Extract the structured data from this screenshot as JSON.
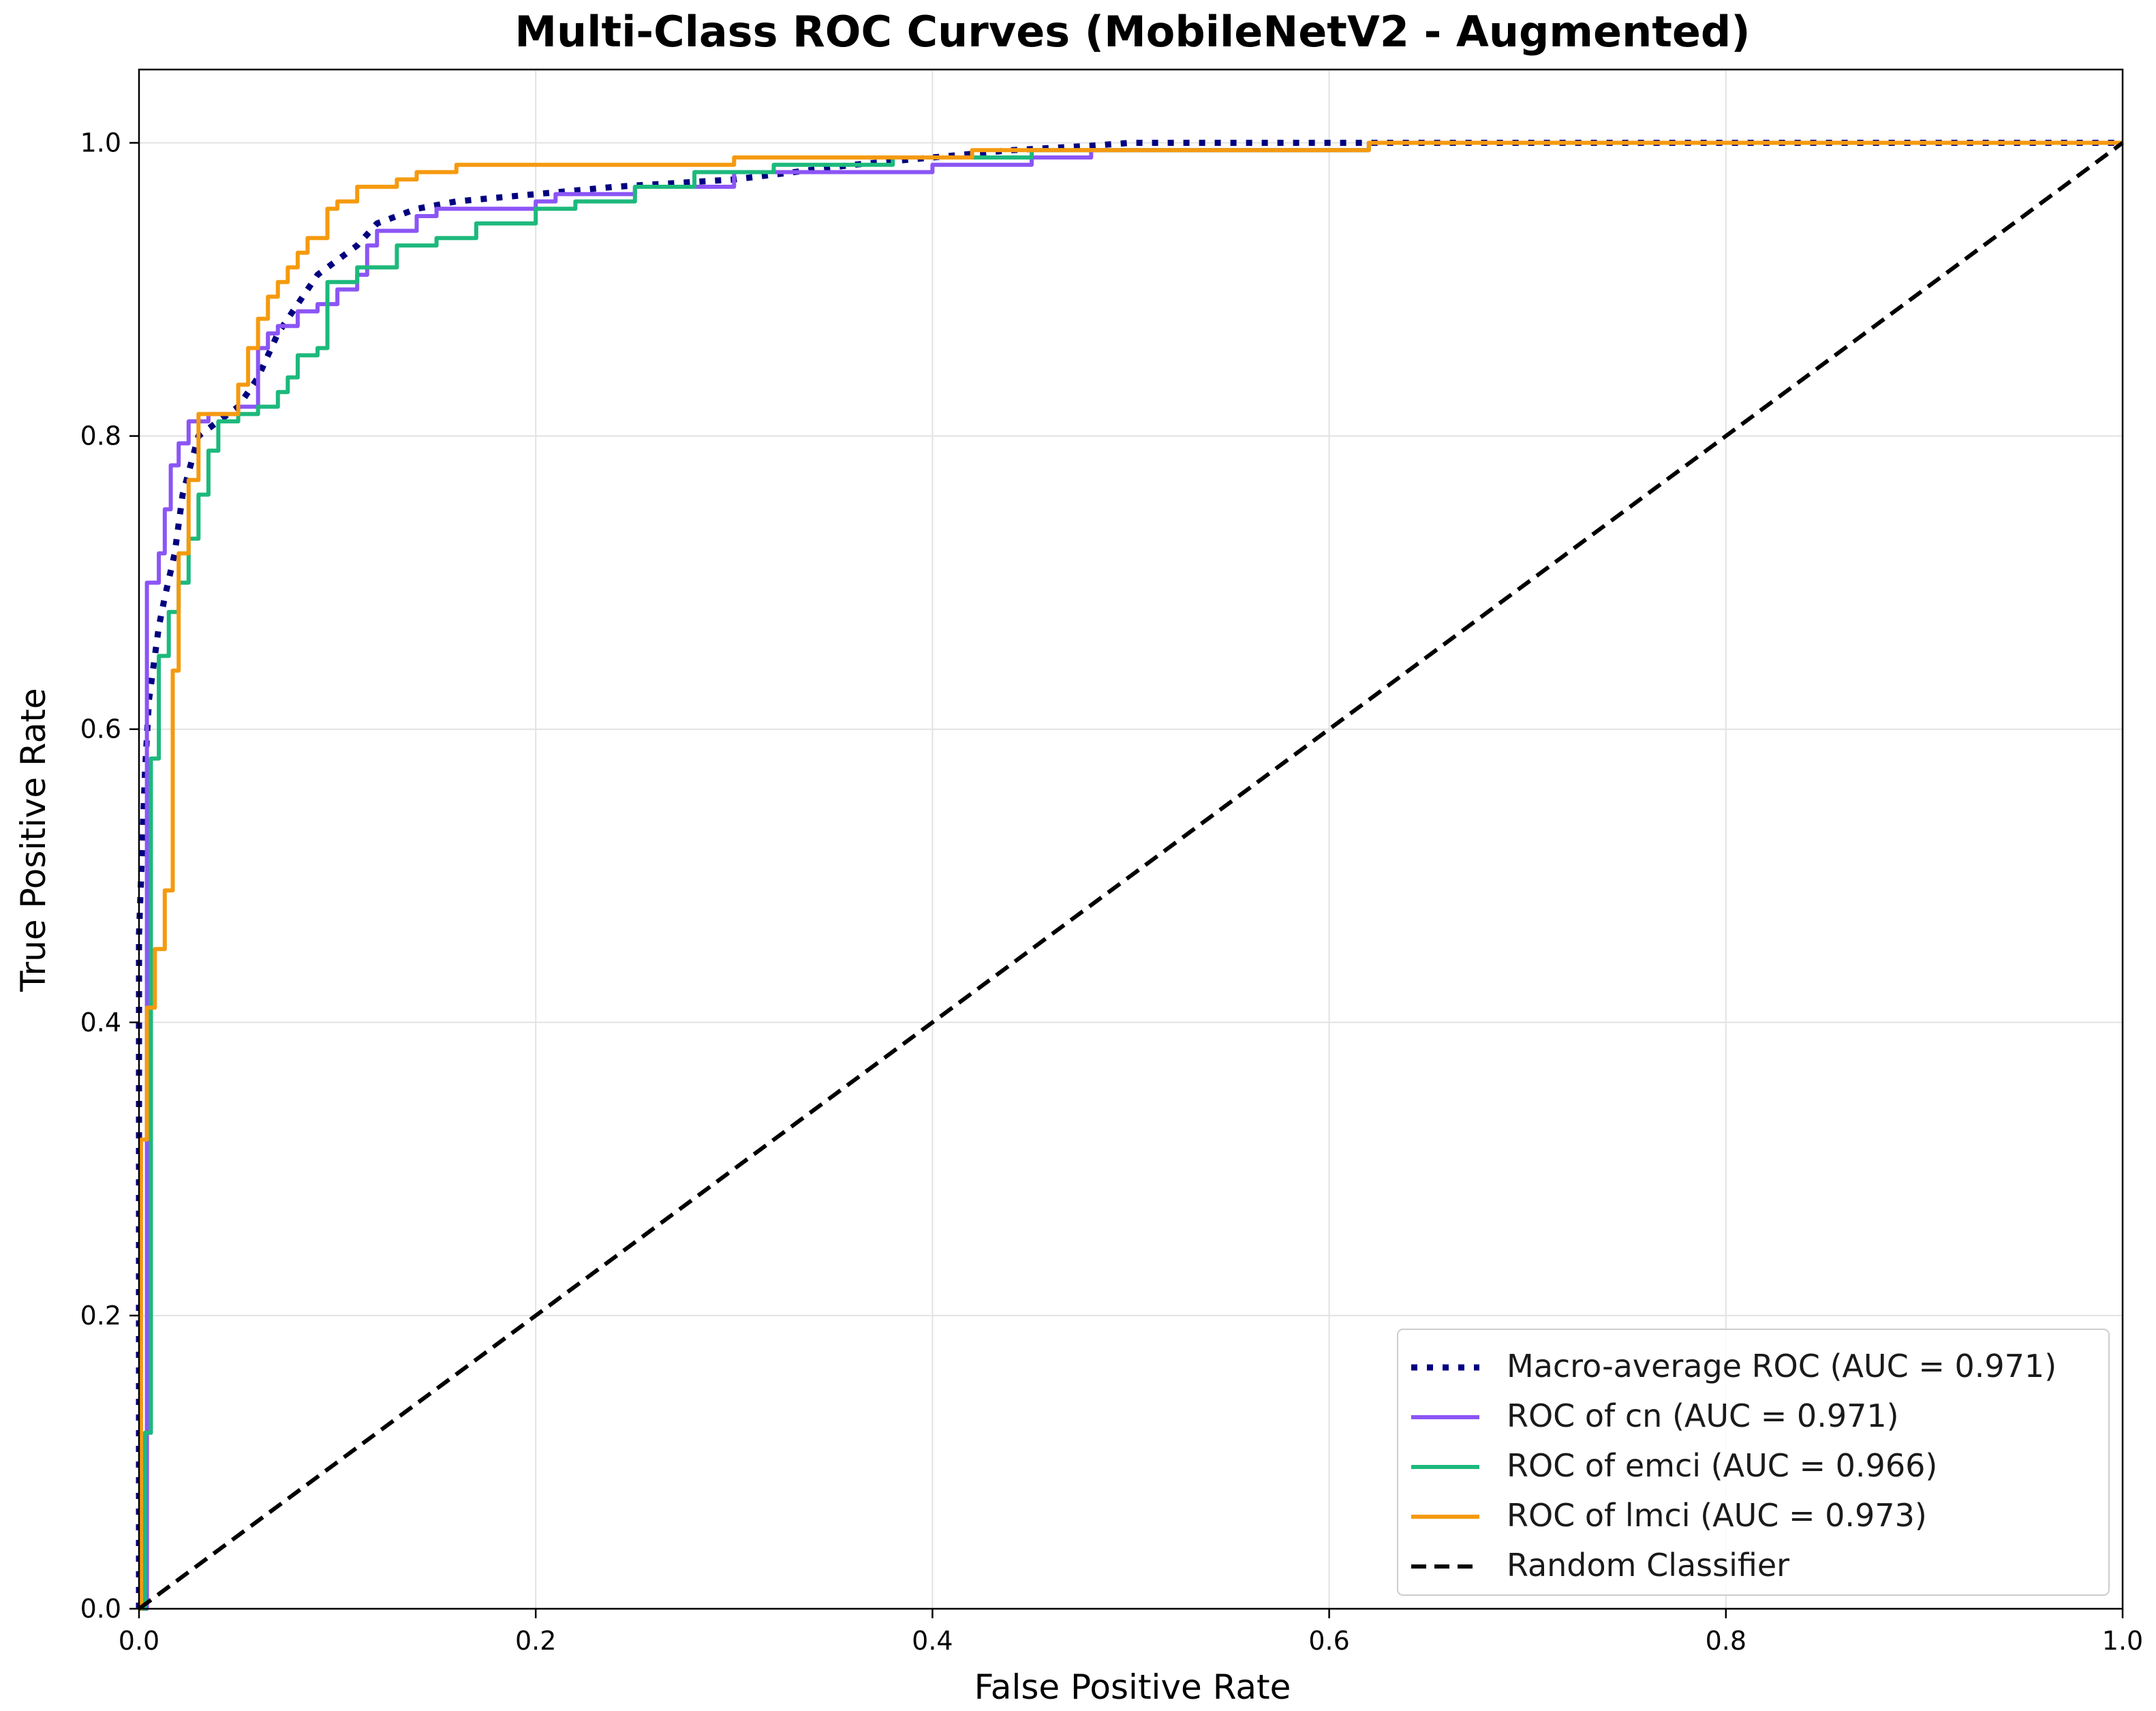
{
  "chart_data": {
    "type": "line",
    "title": "Multi-Class ROC Curves (MobileNetV2 - Augmented)",
    "xlabel": "False Positive Rate",
    "ylabel": "True Positive Rate",
    "xlim": [
      0.0,
      1.0
    ],
    "ylim": [
      0.0,
      1.05
    ],
    "xticks": [
      0.0,
      0.2,
      0.4,
      0.6,
      0.8,
      1.0
    ],
    "xtick_labels": [
      "0.0",
      "0.2",
      "0.4",
      "0.6",
      "0.8",
      "1.0"
    ],
    "yticks": [
      0.0,
      0.2,
      0.4,
      0.6,
      0.8,
      1.0
    ],
    "ytick_labels": [
      "0.0",
      "0.2",
      "0.4",
      "0.6",
      "0.8",
      "1.0"
    ],
    "grid": true,
    "legend_position": "lower-right",
    "series": [
      {
        "name": "Macro-average ROC (AUC = 0.971)",
        "color": "#000080",
        "style": "dotted",
        "x": [
          0.0,
          0.0,
          0.003,
          0.005,
          0.008,
          0.01,
          0.013,
          0.018,
          0.022,
          0.03,
          0.04,
          0.05,
          0.06,
          0.07,
          0.08,
          0.09,
          0.1,
          0.11,
          0.12,
          0.14,
          0.16,
          0.2,
          0.24,
          0.3,
          0.36,
          0.4,
          0.44,
          0.48,
          0.5,
          0.6,
          0.8,
          1.0
        ],
        "y": [
          0.0,
          0.46,
          0.57,
          0.62,
          0.65,
          0.67,
          0.69,
          0.72,
          0.76,
          0.8,
          0.81,
          0.82,
          0.84,
          0.87,
          0.89,
          0.91,
          0.92,
          0.93,
          0.945,
          0.955,
          0.96,
          0.965,
          0.97,
          0.975,
          0.985,
          0.99,
          0.995,
          0.998,
          1.0,
          1.0,
          1.0,
          1.0
        ]
      },
      {
        "name": "ROC of cn (AUC = 0.971)",
        "color": "#8b55f5",
        "style": "solid",
        "x": [
          0.0,
          0.004,
          0.004,
          0.01,
          0.01,
          0.013,
          0.013,
          0.016,
          0.016,
          0.02,
          0.02,
          0.025,
          0.025,
          0.035,
          0.035,
          0.05,
          0.05,
          0.06,
          0.06,
          0.065,
          0.065,
          0.07,
          0.07,
          0.08,
          0.08,
          0.09,
          0.09,
          0.1,
          0.1,
          0.11,
          0.11,
          0.115,
          0.115,
          0.12,
          0.12,
          0.14,
          0.14,
          0.15,
          0.15,
          0.2,
          0.2,
          0.21,
          0.21,
          0.25,
          0.25,
          0.3,
          0.3,
          0.4,
          0.4,
          0.45,
          0.45,
          0.48,
          0.48,
          0.62,
          0.62,
          1.0
        ],
        "y": [
          0.0,
          0.0,
          0.7,
          0.7,
          0.72,
          0.72,
          0.75,
          0.75,
          0.78,
          0.78,
          0.795,
          0.795,
          0.81,
          0.81,
          0.815,
          0.815,
          0.82,
          0.82,
          0.86,
          0.86,
          0.87,
          0.87,
          0.875,
          0.875,
          0.885,
          0.885,
          0.89,
          0.89,
          0.9,
          0.9,
          0.91,
          0.91,
          0.93,
          0.93,
          0.94,
          0.94,
          0.95,
          0.95,
          0.955,
          0.955,
          0.96,
          0.96,
          0.965,
          0.965,
          0.97,
          0.97,
          0.98,
          0.98,
          0.985,
          0.985,
          0.99,
          0.99,
          0.995,
          0.995,
          1.0,
          1.0
        ]
      },
      {
        "name": "ROC of emci (AUC = 0.966)",
        "color": "#1db97c",
        "style": "solid",
        "x": [
          0.0,
          0.003,
          0.003,
          0.006,
          0.006,
          0.01,
          0.01,
          0.015,
          0.015,
          0.02,
          0.02,
          0.025,
          0.025,
          0.03,
          0.03,
          0.035,
          0.035,
          0.04,
          0.04,
          0.05,
          0.05,
          0.06,
          0.06,
          0.07,
          0.07,
          0.075,
          0.075,
          0.08,
          0.08,
          0.09,
          0.09,
          0.095,
          0.095,
          0.11,
          0.11,
          0.13,
          0.13,
          0.15,
          0.15,
          0.17,
          0.17,
          0.2,
          0.2,
          0.22,
          0.22,
          0.25,
          0.25,
          0.28,
          0.28,
          0.32,
          0.32,
          0.38,
          0.38,
          0.45,
          0.45,
          0.62,
          0.62,
          1.0
        ],
        "y": [
          0.0,
          0.0,
          0.12,
          0.12,
          0.58,
          0.58,
          0.65,
          0.65,
          0.68,
          0.68,
          0.7,
          0.7,
          0.73,
          0.73,
          0.76,
          0.76,
          0.79,
          0.79,
          0.81,
          0.81,
          0.815,
          0.815,
          0.82,
          0.82,
          0.83,
          0.83,
          0.84,
          0.84,
          0.855,
          0.855,
          0.86,
          0.86,
          0.905,
          0.905,
          0.915,
          0.915,
          0.93,
          0.93,
          0.935,
          0.935,
          0.945,
          0.945,
          0.955,
          0.955,
          0.96,
          0.96,
          0.97,
          0.97,
          0.98,
          0.98,
          0.985,
          0.985,
          0.99,
          0.99,
          0.995,
          0.995,
          1.0,
          1.0
        ]
      },
      {
        "name": "ROC of lmci (AUC = 0.973)",
        "color": "#f59a0f",
        "style": "solid",
        "x": [
          0.0,
          0.001,
          0.001,
          0.004,
          0.004,
          0.008,
          0.008,
          0.013,
          0.013,
          0.017,
          0.017,
          0.02,
          0.02,
          0.025,
          0.025,
          0.03,
          0.03,
          0.05,
          0.05,
          0.055,
          0.055,
          0.06,
          0.06,
          0.065,
          0.065,
          0.07,
          0.07,
          0.075,
          0.075,
          0.08,
          0.08,
          0.085,
          0.085,
          0.095,
          0.095,
          0.1,
          0.1,
          0.11,
          0.11,
          0.13,
          0.13,
          0.14,
          0.14,
          0.16,
          0.16,
          0.3,
          0.3,
          0.42,
          0.42,
          0.62,
          0.62,
          1.0
        ],
        "y": [
          0.0,
          0.0,
          0.32,
          0.32,
          0.41,
          0.41,
          0.45,
          0.45,
          0.49,
          0.49,
          0.64,
          0.64,
          0.72,
          0.72,
          0.77,
          0.77,
          0.815,
          0.815,
          0.835,
          0.835,
          0.86,
          0.86,
          0.88,
          0.88,
          0.895,
          0.895,
          0.905,
          0.905,
          0.915,
          0.915,
          0.925,
          0.925,
          0.935,
          0.935,
          0.955,
          0.955,
          0.96,
          0.96,
          0.97,
          0.97,
          0.975,
          0.975,
          0.98,
          0.98,
          0.985,
          0.985,
          0.99,
          0.99,
          0.995,
          0.995,
          1.0,
          1.0
        ]
      },
      {
        "name": "Random Classifier",
        "color": "#000000",
        "style": "dashed",
        "x": [
          0.0,
          1.0
        ],
        "y": [
          0.0,
          1.0
        ]
      }
    ]
  }
}
